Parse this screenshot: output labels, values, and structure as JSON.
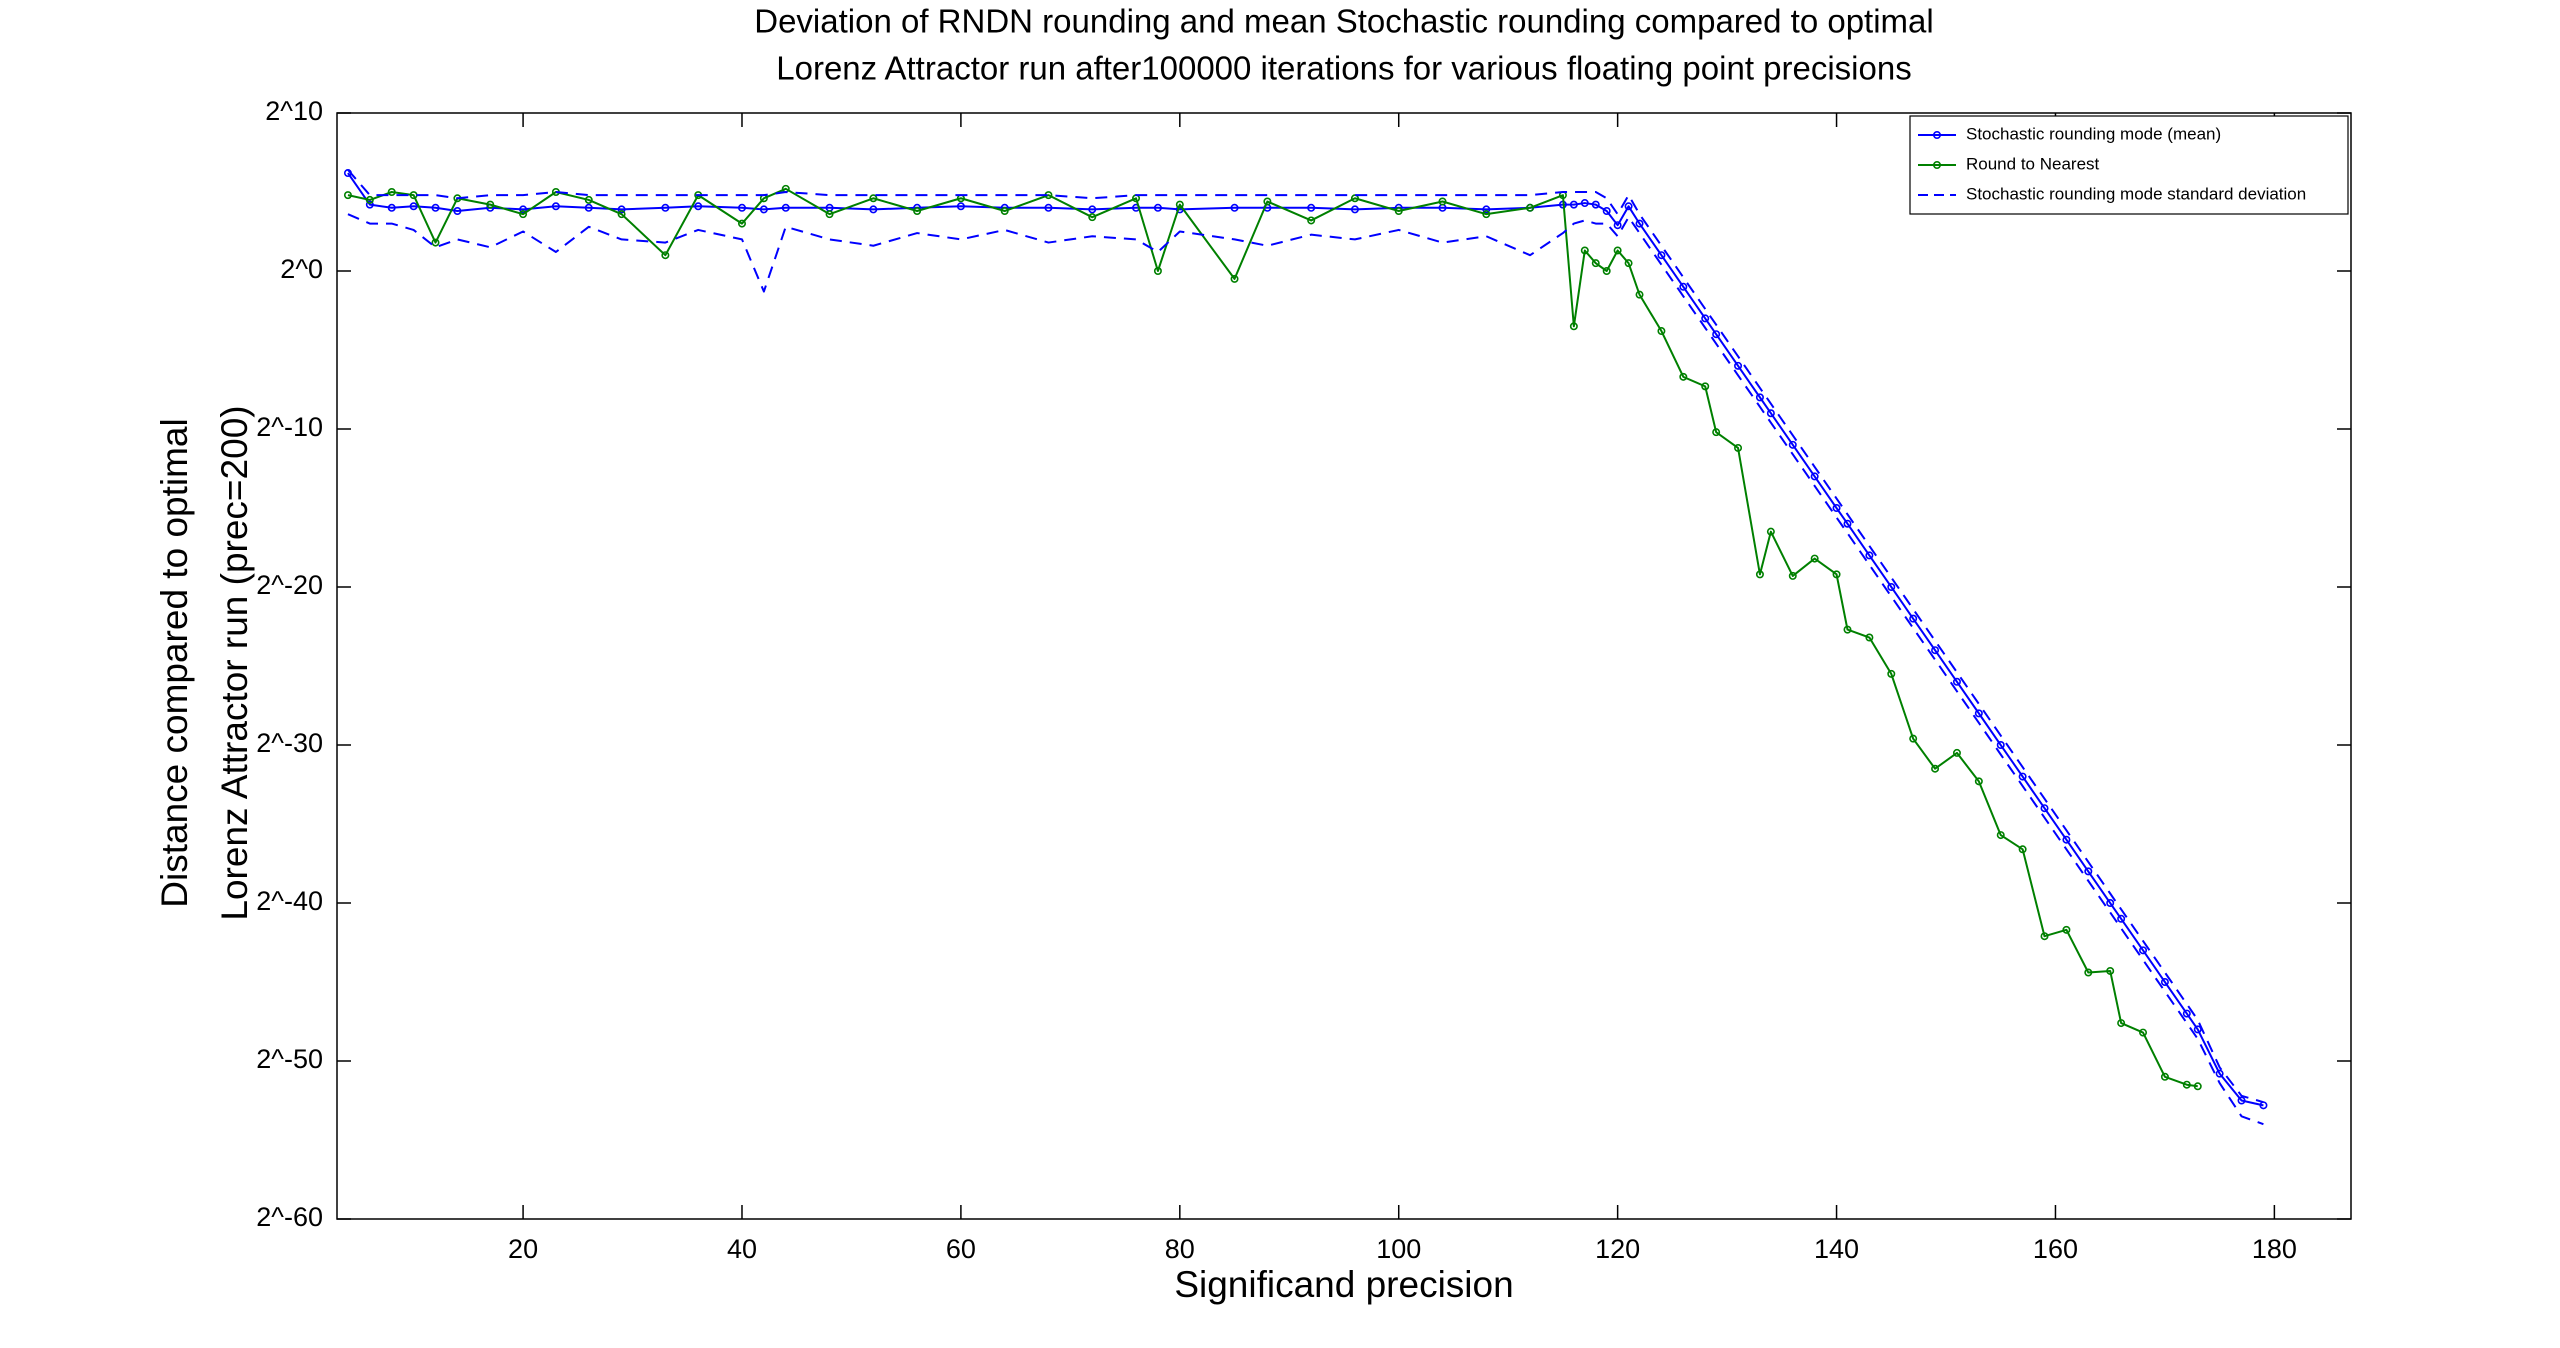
{
  "chart_data": {
    "type": "line",
    "title": [
      "Deviation of RNDN rounding and mean Stochastic rounding compared to optimal",
      "Lorenz Attractor run after100000 iterations for various floating point precisions"
    ],
    "xlabel": "Significand precision",
    "ylabel": [
      "Distance compared to optimal",
      "Lorenz Attractor run (prec=200)"
    ],
    "x": [
      4,
      6,
      8,
      10,
      12,
      14,
      17,
      20,
      23,
      26,
      29,
      33,
      36,
      40,
      42,
      44,
      48,
      52,
      56,
      60,
      64,
      68,
      72,
      76,
      78,
      80,
      85,
      88,
      92,
      96,
      100,
      104,
      108,
      112,
      115,
      116,
      117,
      118,
      119,
      120,
      121,
      122,
      124,
      126,
      128,
      129,
      131,
      133,
      134,
      136,
      138,
      140,
      141,
      143,
      145,
      147,
      149,
      151,
      153,
      155,
      157,
      159,
      161,
      163,
      165,
      166,
      168,
      170,
      172,
      173,
      175,
      177,
      179
    ],
    "series": [
      {
        "name": "Stochastic rounding mode (mean)",
        "color": "#0000ff",
        "markers": true,
        "values": [
          73.5,
          18.4,
          16,
          17.1,
          16,
          13.9,
          16,
          14.9,
          17.1,
          16,
          14.9,
          16,
          17.1,
          16,
          14.9,
          16,
          16,
          14.9,
          16,
          17.1,
          16,
          16,
          14.9,
          16,
          16,
          14.9,
          16,
          16,
          16,
          14.9,
          16,
          16,
          14.9,
          16,
          18.4,
          18.4,
          19.7,
          18.4,
          13.9,
          7.46,
          17.1,
          8,
          2,
          0.5,
          0.125,
          0.0625,
          0.0156,
          0.00391,
          0.00195,
          0.000488,
          0.000122,
          3.05e-05,
          1.53e-05,
          3.81e-06,
          9.54e-07,
          2.38e-07,
          5.96e-08,
          1.49e-08,
          3.73e-09,
          9.31e-10,
          2.33e-10,
          5.82e-11,
          1.46e-11,
          3.64e-12,
          9.09e-13,
          4.55e-13,
          1.14e-13,
          2.84e-14,
          7.11e-15,
          3.55e-15,
          5.1e-16,
          1.57e-16,
          1.27e-16
        ]
      },
      {
        "name": "Round to Nearest",
        "color": "#008000",
        "markers": true,
        "values": [
          27.9,
          22.6,
          32,
          27.9,
          3.48,
          24.3,
          18.4,
          12.1,
          32,
          22.6,
          12.1,
          2,
          27.9,
          8,
          24.3,
          36.8,
          12.1,
          24.3,
          13.9,
          24.3,
          13.9,
          27.9,
          10.6,
          24.3,
          1,
          18.4,
          0.707,
          21.1,
          9.19,
          24.3,
          13.9,
          21.1,
          12.1,
          16,
          27.9,
          0.0884,
          2.46,
          1.41,
          1,
          2.46,
          1.41,
          0.354,
          0.0718,
          0.00962,
          0.00634,
          0.00085,
          0.000425,
          1.66e-06,
          1.08e-05,
          1.55e-06,
          3.32e-06,
          1.66e-06,
          1.47e-07,
          1.04e-07,
          2.11e-08,
          1.23e-09,
          3.29e-10,
          6.58e-10,
          1.89e-10,
          1.79e-11,
          9.6e-12,
          2.12e-13,
          2.8e-13,
          4.31e-14,
          4.61e-14,
          4.69e-15,
          3.09e-15,
          4.44e-16,
          3.14e-16,
          2.93e-16,
          null,
          null,
          null
        ]
      },
      {
        "name": "Stochastic rounding mode standard deviation",
        "color": "#0000ff",
        "dashed": true,
        "upper": [
          84.4,
          27.9,
          27.9,
          27.9,
          27.9,
          24.3,
          27.9,
          27.9,
          32,
          27.9,
          27.9,
          27.9,
          27.9,
          27.9,
          27.9,
          32,
          27.9,
          27.9,
          27.9,
          27.9,
          27.9,
          27.9,
          24.3,
          27.9,
          27.9,
          27.9,
          27.9,
          27.9,
          27.9,
          27.9,
          27.9,
          27.9,
          27.9,
          27.9,
          32,
          32,
          32,
          32,
          24.3,
          12.1,
          27.9,
          12.1,
          3.03,
          0.758,
          0.189,
          0.0947,
          0.0237,
          0.00592,
          0.00296,
          0.00074,
          0.000185,
          4.62e-05,
          2.31e-05,
          5.78e-06,
          1.45e-06,
          3.61e-07,
          9.03e-08,
          2.26e-08,
          5.65e-09,
          1.41e-09,
          3.53e-10,
          8.82e-11,
          2.21e-11,
          5.51e-12,
          1.38e-12,
          6.89e-13,
          1.72e-13,
          4.31e-14,
          1.08e-14,
          5.38e-15,
          6.73e-16,
          1.93e-16,
          1.46e-16
        ],
        "lower": [
          12.1,
          8,
          8,
          6.06,
          2.83,
          4,
          2.83,
          5.66,
          2.3,
          6.96,
          4,
          3.48,
          6.06,
          4,
          0.406,
          6.96,
          4,
          3.03,
          5.28,
          4,
          6.06,
          3.48,
          4.59,
          4,
          2.3,
          5.66,
          4,
          3.03,
          4.92,
          4,
          6.06,
          3.48,
          4.59,
          2,
          5.28,
          8,
          9.19,
          8,
          8,
          4.59,
          10.6,
          5.28,
          1.32,
          0.33,
          0.0825,
          0.0412,
          0.0103,
          0.00258,
          0.00129,
          0.000322,
          8.05e-05,
          2.01e-05,
          1.01e-05,
          2.52e-06,
          6.29e-07,
          1.57e-07,
          3.93e-08,
          9.83e-09,
          2.46e-09,
          6.14e-10,
          1.54e-10,
          3.84e-11,
          9.6e-12,
          2.4e-12,
          6e-13,
          3e-13,
          7.5e-14,
          1.87e-14,
          4.69e-15,
          2.34e-15,
          3.37e-16,
          7.85e-17,
          5.55e-17
        ]
      }
    ],
    "xlim": [
      3,
      187
    ],
    "xticks": [
      20,
      40,
      60,
      80,
      100,
      120,
      140,
      160,
      180
    ],
    "ylim": [
      8.673617379884035e-19,
      1024
    ],
    "yscale": "log",
    "logbase": 2,
    "yticks": [
      {
        "value": 8.673617379884035e-19,
        "label": "2^-60"
      },
      {
        "value": 8.881784197001252e-16,
        "label": "2^-50"
      },
      {
        "value": 9.094947017729282e-13,
        "label": "2^-40"
      },
      {
        "value": 9.313225746154785e-10,
        "label": "2^-30"
      },
      {
        "value": 9.5367431640625e-07,
        "label": "2^-20"
      },
      {
        "value": 0.0009765625,
        "label": "2^-10"
      },
      {
        "value": 1,
        "label": "2^0"
      },
      {
        "value": 1024,
        "label": "2^10"
      }
    ],
    "grid": false,
    "legend": "upper right"
  }
}
